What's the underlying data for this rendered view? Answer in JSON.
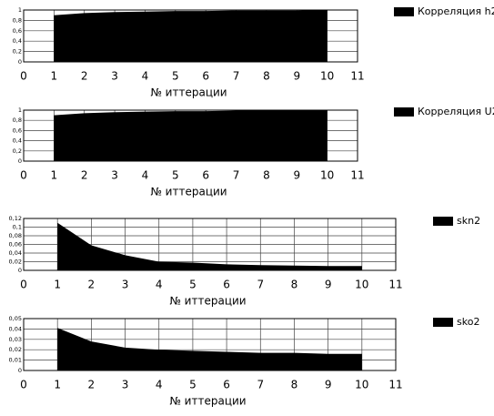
{
  "chart_data": [
    {
      "type": "area",
      "x_label": "№ иттерации",
      "x": [
        1,
        2,
        3,
        4,
        5,
        6,
        7,
        8,
        9,
        10
      ],
      "series": [
        {
          "name": "Корреляция h2",
          "color": "#000000",
          "values": [
            0.9,
            0.94,
            0.96,
            0.97,
            0.98,
            0.98,
            0.99,
            0.99,
            0.99,
            1.0
          ]
        }
      ],
      "xlim": [
        0,
        11
      ],
      "xticks": [
        0,
        1,
        2,
        3,
        4,
        5,
        6,
        7,
        8,
        9,
        10,
        11
      ],
      "ylim": [
        0,
        1
      ],
      "yticks": [
        0,
        {
          "value": 0.2,
          "label": "0,2"
        },
        {
          "value": 0.4,
          "label": "0,4"
        },
        {
          "value": 0.6,
          "label": "0,6"
        },
        {
          "value": 0.8,
          "label": "0,8"
        },
        1
      ],
      "grid": true
    },
    {
      "type": "area",
      "x_label": "№ иттерации",
      "x": [
        1,
        2,
        3,
        4,
        5,
        6,
        7,
        8,
        9,
        10
      ],
      "series": [
        {
          "name": "Корреляция U2",
          "color": "#000000",
          "values": [
            0.9,
            0.94,
            0.96,
            0.97,
            0.98,
            0.98,
            0.99,
            0.99,
            0.99,
            1.0
          ]
        }
      ],
      "xlim": [
        0,
        11
      ],
      "xticks": [
        0,
        1,
        2,
        3,
        4,
        5,
        6,
        7,
        8,
        9,
        10,
        11
      ],
      "ylim": [
        0,
        1
      ],
      "yticks": [
        0,
        {
          "value": 0.2,
          "label": "0,2"
        },
        {
          "value": 0.4,
          "label": "0,4"
        },
        {
          "value": 0.6,
          "label": "0,6"
        },
        {
          "value": 0.8,
          "label": "0,8"
        },
        1
      ],
      "grid": true
    },
    {
      "type": "area",
      "x_label": "№ иттерации",
      "x": [
        1,
        2,
        3,
        4,
        5,
        6,
        7,
        8,
        9,
        10
      ],
      "series": [
        {
          "name": "skn2",
          "color": "#000000",
          "values": [
            0.11,
            0.058,
            0.035,
            0.02,
            0.018,
            0.014,
            0.012,
            0.011,
            0.01,
            0.01
          ]
        }
      ],
      "xlim": [
        0,
        11
      ],
      "xticks": [
        0,
        1,
        2,
        3,
        4,
        5,
        6,
        7,
        8,
        9,
        10,
        11
      ],
      "ylim": [
        0,
        0.12
      ],
      "yticks": [
        0,
        {
          "value": 0.02,
          "label": "0,02"
        },
        {
          "value": 0.04,
          "label": "0,04"
        },
        {
          "value": 0.06,
          "label": "0,06"
        },
        {
          "value": 0.08,
          "label": "0,08"
        },
        {
          "value": 0.1,
          "label": "0,1"
        },
        {
          "value": 0.12,
          "label": "0,12"
        }
      ],
      "grid": true
    },
    {
      "type": "area",
      "x_label": "№ иттерации",
      "x": [
        1,
        2,
        3,
        4,
        5,
        6,
        7,
        8,
        9,
        10
      ],
      "series": [
        {
          "name": "sko2",
          "color": "#000000",
          "values": [
            0.041,
            0.028,
            0.022,
            0.02,
            0.019,
            0.018,
            0.017,
            0.017,
            0.016,
            0.016
          ]
        }
      ],
      "xlim": [
        0,
        11
      ],
      "xticks": [
        0,
        1,
        2,
        3,
        4,
        5,
        6,
        7,
        8,
        9,
        10,
        11
      ],
      "ylim": [
        0,
        0.05
      ],
      "yticks": [
        0,
        {
          "value": 0.01,
          "label": "0,01"
        },
        {
          "value": 0.02,
          "label": "0,02"
        },
        {
          "value": 0.03,
          "label": "0,03"
        },
        {
          "value": 0.04,
          "label": "0,04"
        },
        {
          "value": 0.05,
          "label": "0,05"
        }
      ],
      "grid": true
    }
  ]
}
